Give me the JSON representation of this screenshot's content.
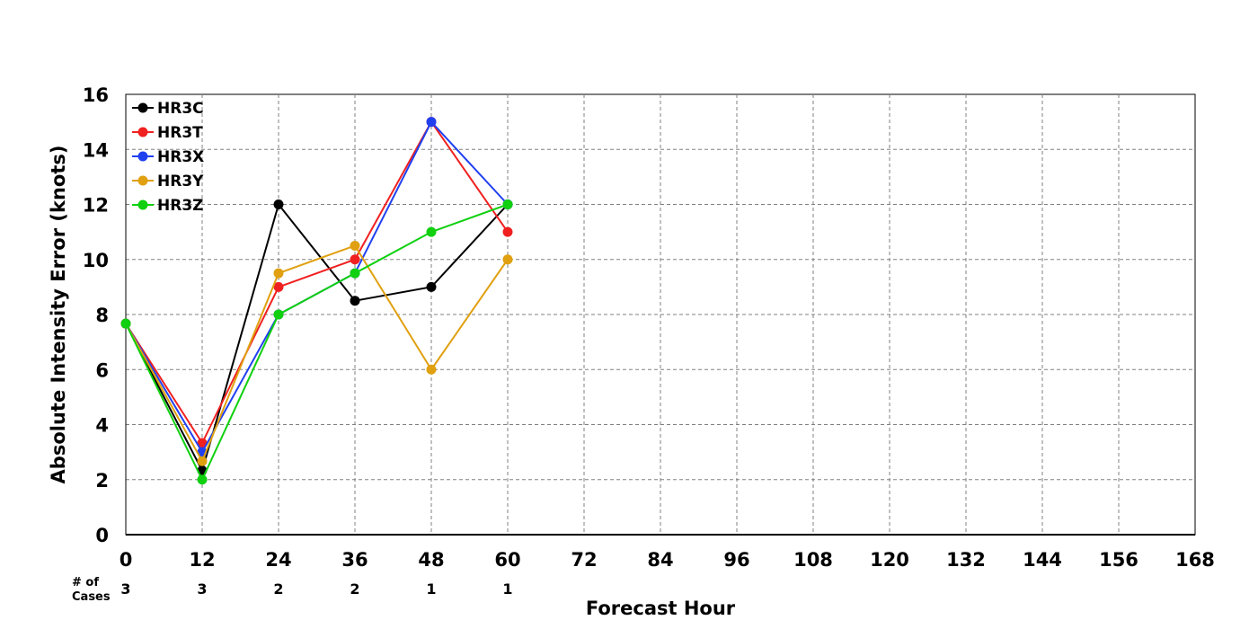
{
  "chart_data": {
    "type": "line",
    "title": "",
    "xlabel": "Forecast Hour",
    "ylabel": "Absolute Intensity Error (knots)",
    "xlim": [
      0,
      168
    ],
    "ylim": [
      0,
      16
    ],
    "x_ticks": [
      0,
      12,
      24,
      36,
      48,
      60,
      72,
      84,
      96,
      108,
      120,
      132,
      144,
      156,
      168
    ],
    "y_ticks": [
      0,
      2,
      4,
      6,
      8,
      10,
      12,
      14,
      16
    ],
    "grid": true,
    "legend_position": "top-left",
    "series": [
      {
        "name": "HR3C",
        "color": "#000000",
        "x": [
          0,
          12,
          24,
          36,
          48,
          60
        ],
        "values": [
          7.67,
          2.33,
          12.0,
          8.5,
          9.0,
          12.0
        ]
      },
      {
        "name": "HR3T",
        "color": "#f02020",
        "x": [
          0,
          12,
          24,
          36,
          48,
          60
        ],
        "values": [
          7.67,
          3.33,
          9.0,
          10.0,
          15.0,
          11.0
        ]
      },
      {
        "name": "HR3X",
        "color": "#2040f0",
        "x": [
          0,
          12,
          24,
          36,
          48,
          60
        ],
        "values": [
          7.67,
          3.0,
          8.0,
          9.5,
          15.0,
          12.0
        ]
      },
      {
        "name": "HR3Y",
        "color": "#e0a010",
        "x": [
          0,
          12,
          24,
          36,
          48,
          60
        ],
        "values": [
          7.67,
          2.67,
          9.5,
          10.5,
          6.0,
          10.0
        ]
      },
      {
        "name": "HR3Z",
        "color": "#10d010",
        "x": [
          0,
          12,
          24,
          36,
          48,
          60
        ],
        "values": [
          7.67,
          2.0,
          8.0,
          9.5,
          11.0,
          12.0
        ]
      }
    ],
    "cases_label_line1": "# of",
    "cases_label_line2": "Cases",
    "cases": [
      {
        "x": 0,
        "n": "3"
      },
      {
        "x": 12,
        "n": "3"
      },
      {
        "x": 24,
        "n": "2"
      },
      {
        "x": 36,
        "n": "2"
      },
      {
        "x": 48,
        "n": "1"
      },
      {
        "x": 60,
        "n": "1"
      }
    ]
  }
}
